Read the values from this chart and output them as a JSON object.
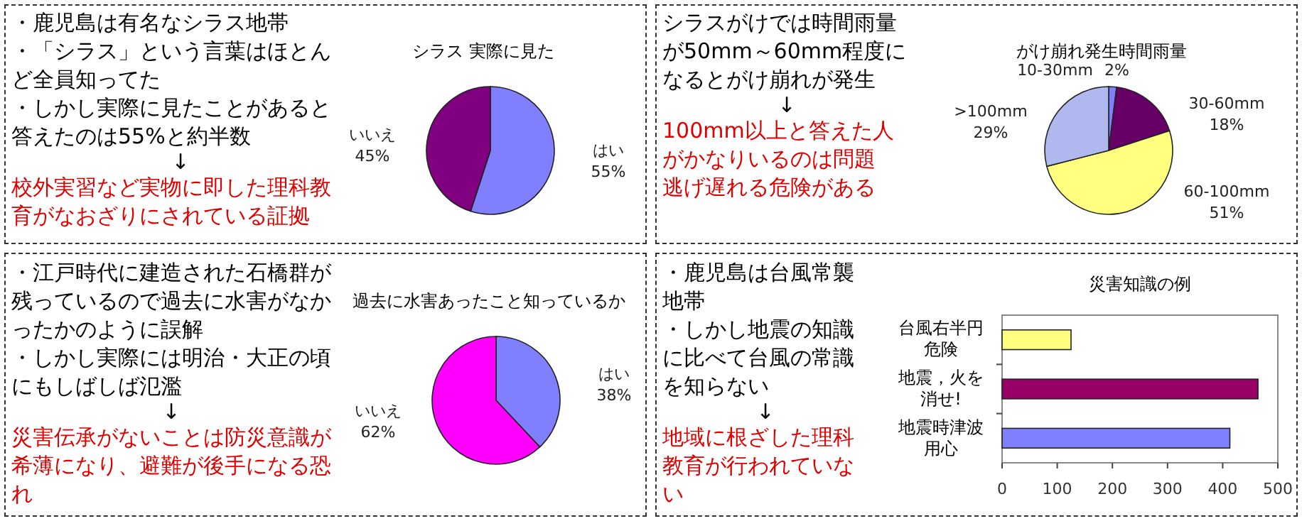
{
  "chart_data": [
    {
      "type": "other",
      "annotations": [
        "・鹿児島は有名なシラス地帯",
        "・「シラス」という言葉はほとんど全員知ってた",
        "・しかし実際に見たことがあると答えたのは55%と約半数",
        "↓",
        "校外実習など実物に即した理科教育がなおざりにされている証拠"
      ],
      "colors": [
        "#000000",
        "#000000",
        "#000000",
        "#000000",
        "#e00000"
      ]
    },
    {
      "type": "pie",
      "title": "シラス 実際に見た",
      "categories": [
        "はい",
        "いいえ"
      ],
      "values": [
        55,
        45
      ],
      "colors": [
        "#8080ff",
        "#800080"
      ],
      "value_labels": [
        "55%",
        "45%"
      ]
    },
    {
      "type": "other",
      "annotations": [
        "シラスがけでは時間雨量が50mm～60mm程度になるとがけ崩れが発生",
        "↓",
        "100mm以上と答えた人がかなりいるのは問題",
        "逃げ遅れる危険がある"
      ],
      "colors": [
        "#000000",
        "#000000",
        "#e00000",
        "#e00000"
      ]
    },
    {
      "type": "pie",
      "title": "がけ崩れ発生時間雨量",
      "categories": [
        "10-30mm",
        "30-60mm",
        "60-100mm",
        ">100mm"
      ],
      "values": [
        2,
        18,
        51,
        29
      ],
      "colors": [
        "#8080ff",
        "#660066",
        "#ffff80",
        "#b0b8f0"
      ],
      "value_labels": [
        "2%",
        "18%",
        "51%",
        "29%"
      ]
    },
    {
      "type": "other",
      "annotations": [
        "・江戸時代に建造された石橋群が残っているので過去に水害がなかったかのように誤解",
        "・しかし実際には明治・大正の頃にもしばしば氾濫",
        "↓",
        "災害伝承がないことは防災意識が希薄になり、避難が後手になる恐れ"
      ],
      "colors": [
        "#000000",
        "#000000",
        "#000000",
        "#e00000"
      ]
    },
    {
      "type": "pie",
      "title": "過去に水害あったこと知っているか",
      "categories": [
        "はい",
        "いいえ"
      ],
      "values": [
        38,
        62
      ],
      "colors": [
        "#8080ff",
        "#ff00ff"
      ],
      "value_labels": [
        "38%",
        "62%"
      ]
    },
    {
      "type": "other",
      "annotations": [
        "・鹿児島は台風常襲地帯",
        "・しかし地震の知識に比べて台風の常識を知らない",
        "↓",
        "地域に根ざした理科教育が行われていない"
      ],
      "colors": [
        "#000000",
        "#000000",
        "#000000",
        "#e00000"
      ]
    },
    {
      "type": "bar",
      "orientation": "horizontal",
      "title": "災害知識の例",
      "categories": [
        "台風右半円危険",
        "地震，火を消せ!",
        "地震時津波用心"
      ],
      "values": [
        125,
        464,
        413
      ],
      "colors": [
        "#ffff80",
        "#990066",
        "#8080ff"
      ],
      "xlim": [
        0,
        500
      ],
      "xticks": [
        0,
        100,
        200,
        300,
        400,
        500
      ],
      "grid": false,
      "legend": false
    }
  ]
}
